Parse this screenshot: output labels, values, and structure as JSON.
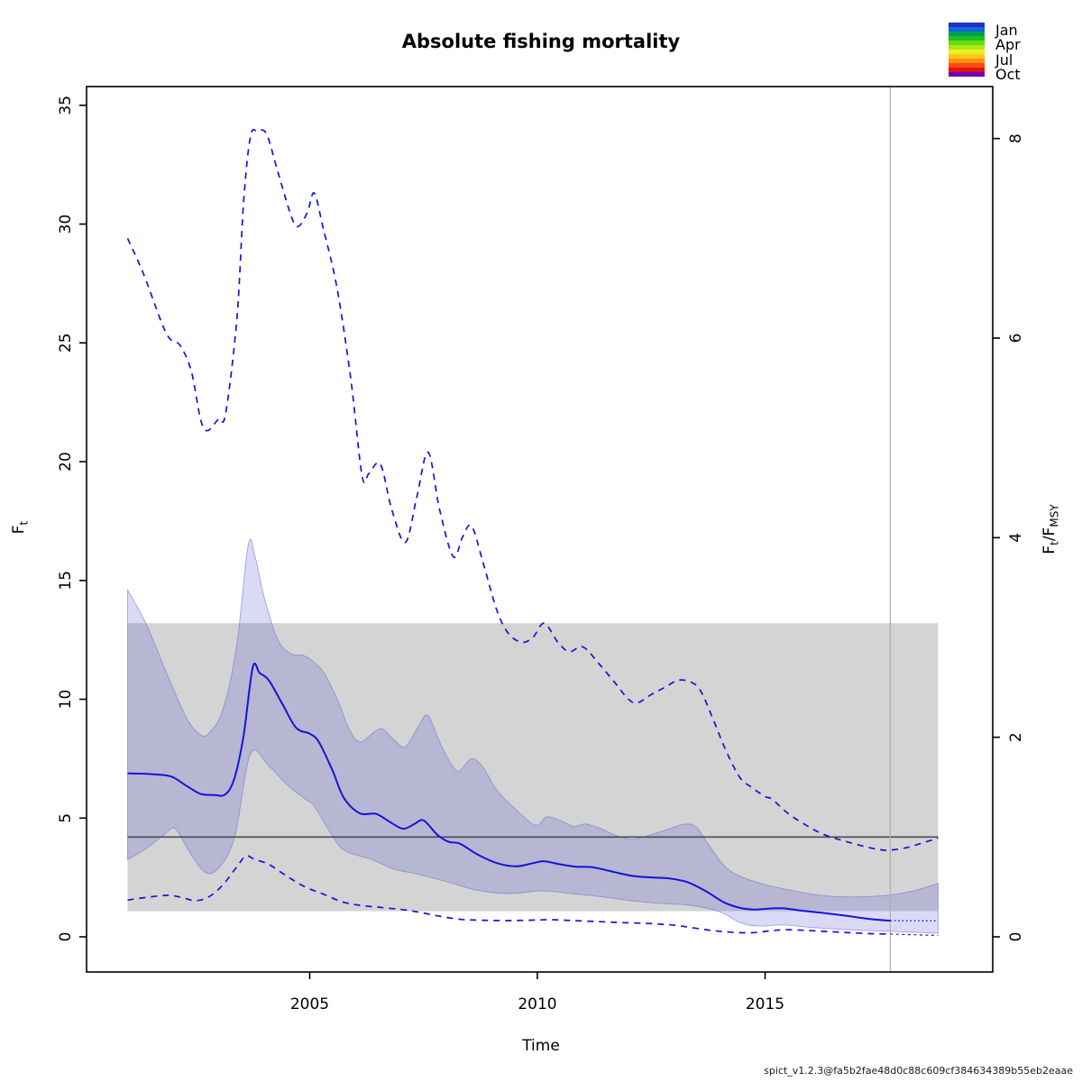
{
  "title": "Absolute fishing mortality",
  "caption": "spict_v1.2.3@fa5b2fae48d0c88c609cf384634389b55eb2eaae",
  "legend": {
    "months": [
      "Jan",
      "Apr",
      "Jul",
      "Oct"
    ],
    "colors": [
      "#2030c8",
      "#1068dc",
      "#00a050",
      "#20c020",
      "#68dc14",
      "#aae818",
      "#ecf020",
      "#ffc818",
      "#ff9014",
      "#ff4c10",
      "#e01414",
      "#6a00b4"
    ]
  },
  "axes": {
    "x_label": "Time",
    "left_main": "F",
    "left_sub": "t",
    "right_num": "F",
    "right_num_sub": "t",
    "right_slash": "/",
    "right_den": "F",
    "right_den_sub": "MSY",
    "x_tick_labels": [
      "2005",
      "2010",
      "2015"
    ],
    "left_tick_labels": [
      "0",
      "5",
      "10",
      "15",
      "20",
      "25",
      "30",
      "35"
    ],
    "right_tick_labels": [
      "0",
      "2",
      "4",
      "6",
      "8"
    ]
  },
  "colors": {
    "line_blue": "#1414dc",
    "band_fill": "rgba(70,70,210,0.20)",
    "band_edge": "rgba(110,110,215,0.60)",
    "gray_band": "#d4d4d4",
    "fmsy_line": "#4a4a4a",
    "vline": "#aeaeae",
    "box": "#000000"
  },
  "chart_data": {
    "type": "line",
    "title": "Absolute fishing mortality",
    "xlabel": "Time",
    "ylabel": "Ft (left) and Ft/FMSY (right)",
    "x_domain": [
      2000.1,
      2020.0
    ],
    "ylim": [
      -1.5,
      35.8
    ],
    "x_ticks": [
      2005,
      2010,
      2015
    ],
    "y_ticks_left": [
      0,
      5,
      10,
      15,
      20,
      25,
      30,
      35
    ],
    "y_ticks_right_ratio": [
      0,
      2,
      4,
      6,
      8
    ],
    "fmsy": 4.2,
    "assessment_time": 2017.75,
    "data_start": 2001.0,
    "data_end": 2018.8,
    "grid": false,
    "legend_position": "top-right",
    "gray_band": {
      "x0": 2001.0,
      "x1": 2018.8,
      "f0": 1.08,
      "f1": 13.2
    },
    "band": {
      "top": [
        [
          2001.0,
          14.6
        ],
        [
          2001.4,
          13.2
        ],
        [
          2001.9,
          10.9
        ],
        [
          2002.3,
          9.2
        ],
        [
          2002.6,
          8.5
        ],
        [
          2002.8,
          8.6
        ],
        [
          2003.1,
          9.6
        ],
        [
          2003.4,
          12.3
        ],
        [
          2003.65,
          16.5
        ],
        [
          2003.8,
          16.0
        ],
        [
          2004.0,
          14.3
        ],
        [
          2004.3,
          12.5
        ],
        [
          2004.6,
          11.9
        ],
        [
          2004.85,
          11.85
        ],
        [
          2005.1,
          11.55
        ],
        [
          2005.35,
          11.0
        ],
        [
          2005.65,
          9.8
        ],
        [
          2005.85,
          8.8
        ],
        [
          2006.1,
          8.2
        ],
        [
          2006.4,
          8.6
        ],
        [
          2006.6,
          8.75
        ],
        [
          2006.85,
          8.3
        ],
        [
          2007.1,
          8.0
        ],
        [
          2007.4,
          8.9
        ],
        [
          2007.6,
          9.3
        ],
        [
          2007.9,
          8.0
        ],
        [
          2008.15,
          7.15
        ],
        [
          2008.3,
          7.0
        ],
        [
          2008.55,
          7.5
        ],
        [
          2008.8,
          7.15
        ],
        [
          2009.1,
          6.2
        ],
        [
          2009.45,
          5.5
        ],
        [
          2009.95,
          4.7
        ],
        [
          2010.2,
          5.05
        ],
        [
          2010.5,
          4.9
        ],
        [
          2010.8,
          4.65
        ],
        [
          2011.05,
          4.75
        ],
        [
          2011.4,
          4.55
        ],
        [
          2011.75,
          4.25
        ],
        [
          2012.1,
          4.1
        ],
        [
          2012.5,
          4.3
        ],
        [
          2012.9,
          4.55
        ],
        [
          2013.25,
          4.75
        ],
        [
          2013.5,
          4.6
        ],
        [
          2013.75,
          3.9
        ],
        [
          2014.1,
          3.0
        ],
        [
          2014.45,
          2.55
        ],
        [
          2015.0,
          2.2
        ],
        [
          2015.6,
          1.95
        ],
        [
          2016.2,
          1.75
        ],
        [
          2016.8,
          1.68
        ],
        [
          2017.3,
          1.7
        ],
        [
          2017.75,
          1.76
        ],
        [
          2018.3,
          1.95
        ],
        [
          2018.8,
          2.25
        ]
      ],
      "bottom": [
        [
          2001.0,
          3.25
        ],
        [
          2001.4,
          3.7
        ],
        [
          2001.8,
          4.3
        ],
        [
          2002.05,
          4.55
        ],
        [
          2002.35,
          3.6
        ],
        [
          2002.7,
          2.72
        ],
        [
          2003.0,
          2.9
        ],
        [
          2003.35,
          4.2
        ],
        [
          2003.7,
          7.7
        ],
        [
          2004.1,
          7.2
        ],
        [
          2004.5,
          6.4
        ],
        [
          2004.9,
          5.8
        ],
        [
          2005.1,
          5.5
        ],
        [
          2005.45,
          4.4
        ],
        [
          2005.75,
          3.65
        ],
        [
          2006.35,
          3.26
        ],
        [
          2006.85,
          2.85
        ],
        [
          2007.35,
          2.65
        ],
        [
          2008.05,
          2.3
        ],
        [
          2008.7,
          1.95
        ],
        [
          2009.4,
          1.82
        ],
        [
          2010.1,
          1.93
        ],
        [
          2010.75,
          1.82
        ],
        [
          2011.35,
          1.7
        ],
        [
          2012.1,
          1.51
        ],
        [
          2012.75,
          1.4
        ],
        [
          2013.35,
          1.33
        ],
        [
          2014.0,
          1.06
        ],
        [
          2014.45,
          0.6
        ],
        [
          2014.85,
          0.45
        ],
        [
          2015.4,
          0.5
        ],
        [
          2016.0,
          0.4
        ],
        [
          2016.8,
          0.3
        ],
        [
          2017.75,
          0.23
        ],
        [
          2018.3,
          0.19
        ],
        [
          2018.8,
          0.15
        ]
      ]
    },
    "series": [
      {
        "name": "F_upper_95CI",
        "style": "dashed",
        "points": [
          [
            2001.0,
            29.4
          ],
          [
            2001.35,
            27.9
          ],
          [
            2001.85,
            25.4
          ],
          [
            2002.15,
            24.9
          ],
          [
            2002.4,
            23.8
          ],
          [
            2002.6,
            21.8
          ],
          [
            2002.75,
            21.3
          ],
          [
            2003.0,
            21.8
          ],
          [
            2003.15,
            22.0
          ],
          [
            2003.4,
            26.0
          ],
          [
            2003.55,
            31.0
          ],
          [
            2003.7,
            33.7
          ],
          [
            2003.85,
            33.9
          ],
          [
            2004.05,
            33.8
          ],
          [
            2004.3,
            32.2
          ],
          [
            2004.6,
            30.3
          ],
          [
            2004.75,
            29.9
          ],
          [
            2004.95,
            30.5
          ],
          [
            2005.1,
            31.3
          ],
          [
            2005.3,
            29.8
          ],
          [
            2005.6,
            27.3
          ],
          [
            2005.9,
            23.5
          ],
          [
            2006.15,
            19.4
          ],
          [
            2006.3,
            19.5
          ],
          [
            2006.55,
            19.9
          ],
          [
            2006.8,
            18.0
          ],
          [
            2007.1,
            16.6
          ],
          [
            2007.35,
            18.5
          ],
          [
            2007.6,
            20.4
          ],
          [
            2007.85,
            18.0
          ],
          [
            2008.15,
            16.0
          ],
          [
            2008.35,
            16.8
          ],
          [
            2008.55,
            17.3
          ],
          [
            2008.8,
            15.8
          ],
          [
            2009.1,
            13.8
          ],
          [
            2009.35,
            12.8
          ],
          [
            2009.65,
            12.4
          ],
          [
            2009.9,
            12.6
          ],
          [
            2010.15,
            13.2
          ],
          [
            2010.45,
            12.4
          ],
          [
            2010.7,
            12.0
          ],
          [
            2011.0,
            12.2
          ],
          [
            2011.35,
            11.5
          ],
          [
            2011.7,
            10.7
          ],
          [
            2012.0,
            10.0
          ],
          [
            2012.2,
            9.85
          ],
          [
            2012.5,
            10.2
          ],
          [
            2012.8,
            10.5
          ],
          [
            2013.1,
            10.8
          ],
          [
            2013.4,
            10.7
          ],
          [
            2013.6,
            10.3
          ],
          [
            2013.85,
            9.2
          ],
          [
            2014.15,
            7.8
          ],
          [
            2014.45,
            6.7
          ],
          [
            2014.7,
            6.3
          ],
          [
            2015.0,
            5.9
          ],
          [
            2015.15,
            5.8
          ],
          [
            2015.5,
            5.2
          ],
          [
            2015.9,
            4.7
          ],
          [
            2016.3,
            4.3
          ],
          [
            2016.8,
            4.0
          ],
          [
            2017.3,
            3.75
          ],
          [
            2017.6,
            3.65
          ],
          [
            2017.75,
            3.65
          ],
          [
            2018.1,
            3.75
          ],
          [
            2018.45,
            3.95
          ],
          [
            2018.8,
            4.15
          ]
        ]
      },
      {
        "name": "F_estimate",
        "style": "solid",
        "points": [
          [
            2001.0,
            6.88
          ],
          [
            2001.5,
            6.85
          ],
          [
            2001.95,
            6.75
          ],
          [
            2002.3,
            6.35
          ],
          [
            2002.6,
            6.02
          ],
          [
            2002.9,
            5.97
          ],
          [
            2003.15,
            6.0
          ],
          [
            2003.35,
            6.7
          ],
          [
            2003.55,
            8.5
          ],
          [
            2003.75,
            11.35
          ],
          [
            2003.9,
            11.1
          ],
          [
            2004.1,
            10.8
          ],
          [
            2004.4,
            9.8
          ],
          [
            2004.7,
            8.8
          ],
          [
            2005.0,
            8.55
          ],
          [
            2005.2,
            8.2
          ],
          [
            2005.5,
            7.0
          ],
          [
            2005.75,
            5.85
          ],
          [
            2006.1,
            5.2
          ],
          [
            2006.45,
            5.18
          ],
          [
            2006.75,
            4.85
          ],
          [
            2007.05,
            4.55
          ],
          [
            2007.3,
            4.75
          ],
          [
            2007.5,
            4.9
          ],
          [
            2007.8,
            4.3
          ],
          [
            2008.05,
            4.0
          ],
          [
            2008.3,
            3.92
          ],
          [
            2008.7,
            3.45
          ],
          [
            2009.15,
            3.08
          ],
          [
            2009.55,
            2.97
          ],
          [
            2009.9,
            3.1
          ],
          [
            2010.15,
            3.18
          ],
          [
            2010.5,
            3.05
          ],
          [
            2010.85,
            2.95
          ],
          [
            2011.2,
            2.93
          ],
          [
            2011.7,
            2.72
          ],
          [
            2012.1,
            2.56
          ],
          [
            2012.5,
            2.5
          ],
          [
            2012.9,
            2.46
          ],
          [
            2013.3,
            2.3
          ],
          [
            2013.7,
            1.92
          ],
          [
            2014.1,
            1.45
          ],
          [
            2014.45,
            1.22
          ],
          [
            2014.75,
            1.15
          ],
          [
            2015.1,
            1.19
          ],
          [
            2015.4,
            1.2
          ],
          [
            2015.8,
            1.1
          ],
          [
            2016.3,
            1.0
          ],
          [
            2016.8,
            0.88
          ],
          [
            2017.3,
            0.75
          ],
          [
            2017.75,
            0.68
          ]
        ]
      },
      {
        "name": "F_lower_95CI",
        "style": "dashed",
        "points": [
          [
            2001.0,
            1.55
          ],
          [
            2001.5,
            1.68
          ],
          [
            2001.9,
            1.75
          ],
          [
            2002.2,
            1.65
          ],
          [
            2002.5,
            1.52
          ],
          [
            2002.8,
            1.7
          ],
          [
            2003.1,
            2.2
          ],
          [
            2003.4,
            2.95
          ],
          [
            2003.6,
            3.4
          ],
          [
            2003.8,
            3.25
          ],
          [
            2004.1,
            3.05
          ],
          [
            2004.5,
            2.55
          ],
          [
            2004.9,
            2.1
          ],
          [
            2005.3,
            1.8
          ],
          [
            2005.7,
            1.48
          ],
          [
            2006.1,
            1.33
          ],
          [
            2006.6,
            1.23
          ],
          [
            2007.1,
            1.13
          ],
          [
            2007.5,
            1.0
          ],
          [
            2007.9,
            0.85
          ],
          [
            2008.35,
            0.73
          ],
          [
            2008.8,
            0.7
          ],
          [
            2009.3,
            0.68
          ],
          [
            2009.8,
            0.7
          ],
          [
            2010.3,
            0.72
          ],
          [
            2010.8,
            0.68
          ],
          [
            2011.35,
            0.64
          ],
          [
            2011.85,
            0.6
          ],
          [
            2012.35,
            0.57
          ],
          [
            2012.8,
            0.52
          ],
          [
            2013.1,
            0.47
          ],
          [
            2013.7,
            0.3
          ],
          [
            2014.2,
            0.2
          ],
          [
            2014.7,
            0.17
          ],
          [
            2015.1,
            0.25
          ],
          [
            2015.45,
            0.3
          ],
          [
            2015.9,
            0.27
          ],
          [
            2016.4,
            0.22
          ],
          [
            2016.9,
            0.17
          ],
          [
            2017.4,
            0.13
          ],
          [
            2017.75,
            0.12
          ]
        ]
      },
      {
        "name": "F_prediction",
        "style": "dotted",
        "points": [
          [
            2017.75,
            0.68
          ],
          [
            2018.8,
            0.67
          ]
        ]
      },
      {
        "name": "F_lower_prediction",
        "style": "fine_dashed",
        "points": [
          [
            2017.75,
            0.12
          ],
          [
            2018.2,
            0.09
          ],
          [
            2018.8,
            0.06
          ]
        ]
      }
    ]
  }
}
